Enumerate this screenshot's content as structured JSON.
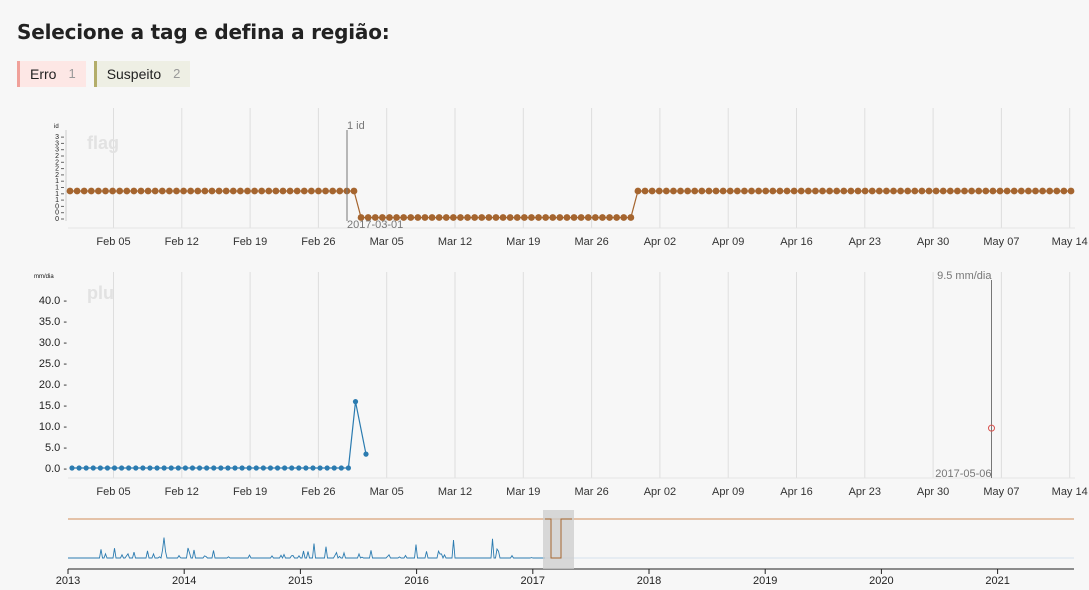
{
  "header": {
    "title": "Selecione a tag e defina a região:"
  },
  "tags": [
    {
      "label": "Erro",
      "count": "1",
      "color": "#f0a19a"
    },
    {
      "label": "Suspeito",
      "count": "2",
      "color": "#b3ad6a"
    }
  ],
  "time_axis_labels": [
    "Feb 05",
    "Feb 12",
    "Feb 19",
    "Feb 26",
    "Mar 05",
    "Mar 12",
    "Mar 19",
    "Mar 26",
    "Apr 02",
    "Apr 09",
    "Apr 16",
    "Apr 23",
    "Apr 30",
    "May 07",
    "May 14"
  ],
  "chart_data": [
    {
      "type": "line",
      "name": "flag",
      "ylabel": "id",
      "yticks": [
        "0",
        "0",
        "0",
        "1",
        "1",
        "1",
        "1",
        "2",
        "2",
        "2",
        "2",
        "3",
        "3",
        "3"
      ],
      "color": "#a5652f",
      "segments": [
        {
          "value": 1,
          "points": 41
        },
        {
          "value": 0,
          "points": 39
        },
        {
          "value": 1,
          "points": 62
        }
      ],
      "tooltip": {
        "value": "1 id",
        "date": "2017-03-01"
      }
    },
    {
      "type": "line",
      "name": "plu",
      "ylabel": "mm/dia",
      "yticks": [
        "0.0",
        "5.0",
        "10.0",
        "15.0",
        "20.0",
        "25.0",
        "30.0",
        "35.0",
        "40.0"
      ],
      "ylim": [
        0,
        40
      ],
      "color": "#2b7bb0",
      "values": [
        0,
        0,
        0,
        0,
        0,
        0,
        0,
        0,
        0,
        0,
        0,
        0,
        0,
        0,
        0,
        0,
        0,
        0,
        0,
        0,
        0,
        0,
        0,
        0,
        0,
        0,
        0,
        0,
        0,
        0,
        0,
        0,
        0,
        0,
        0,
        0,
        0,
        0,
        0,
        0,
        15.8,
        3.3
      ],
      "highlight": {
        "value": 9.5,
        "label": "9.5 mm/dia",
        "date": "2017-05-06",
        "color": "#d9534f"
      }
    },
    {
      "type": "area",
      "name": "overview",
      "xticks": [
        "2013",
        "2014",
        "2015",
        "2016",
        "2017",
        "2018",
        "2019",
        "2020",
        "2021"
      ],
      "colors": {
        "flag": "#d9a27a",
        "plu": "#2b7bb0",
        "brush": "#cccccc"
      }
    }
  ]
}
